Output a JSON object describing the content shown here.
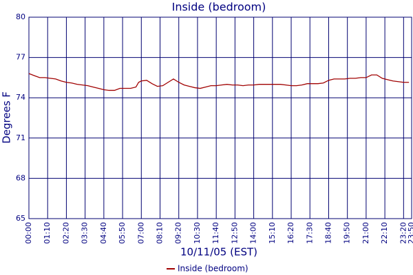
{
  "chart_data": {
    "type": "line",
    "title": "Inside (bedroom)",
    "x_label": "10/11/05 (EST)",
    "y_label": "Degrees F",
    "x": [
      0,
      20,
      40,
      60,
      80,
      100,
      120,
      140,
      160,
      180,
      200,
      220,
      240,
      260,
      280,
      300,
      320,
      340,
      360,
      380,
      400,
      410,
      420,
      440,
      460,
      480,
      500,
      520,
      540,
      560,
      580,
      600,
      620,
      640,
      660,
      680,
      700,
      720,
      740,
      760,
      780,
      800,
      820,
      840,
      860,
      880,
      900,
      920,
      940,
      960,
      980,
      1000,
      1020,
      1040,
      1060,
      1080,
      1100,
      1120,
      1140,
      1160,
      1180,
      1200,
      1220,
      1240,
      1260,
      1280,
      1300,
      1320,
      1340,
      1360,
      1380,
      1400,
      1420
    ],
    "series": [
      {
        "name": "Inside (bedroom)",
        "color": "#a00000",
        "values": [
          75.8,
          75.65,
          75.5,
          75.5,
          75.45,
          75.4,
          75.25,
          75.15,
          75.1,
          75.0,
          74.95,
          74.9,
          74.8,
          74.7,
          74.6,
          74.55,
          74.55,
          74.7,
          74.7,
          74.7,
          74.8,
          75.15,
          75.25,
          75.3,
          75.05,
          74.85,
          74.9,
          75.15,
          75.4,
          75.15,
          74.95,
          74.85,
          74.75,
          74.7,
          74.8,
          74.9,
          74.9,
          74.95,
          75.0,
          74.95,
          74.95,
          74.9,
          74.95,
          74.95,
          75.0,
          75.0,
          75.0,
          75.0,
          75.0,
          74.95,
          74.9,
          74.9,
          74.95,
          75.05,
          75.05,
          75.05,
          75.1,
          75.3,
          75.4,
          75.4,
          75.4,
          75.45,
          75.45,
          75.5,
          75.5,
          75.7,
          75.7,
          75.45,
          75.35,
          75.25,
          75.2,
          75.15,
          75.15
        ]
      }
    ],
    "xlim": [
      0,
      1430
    ],
    "ylim": [
      65,
      80
    ],
    "xticks": [
      {
        "value": 0,
        "label": "00:00"
      },
      {
        "value": 70,
        "label": "01:10"
      },
      {
        "value": 140,
        "label": "02:20"
      },
      {
        "value": 210,
        "label": "03:30"
      },
      {
        "value": 280,
        "label": "04:40"
      },
      {
        "value": 350,
        "label": "05:50"
      },
      {
        "value": 420,
        "label": "07:00"
      },
      {
        "value": 490,
        "label": "08:10"
      },
      {
        "value": 560,
        "label": "09:20"
      },
      {
        "value": 630,
        "label": "10:30"
      },
      {
        "value": 700,
        "label": "11:40"
      },
      {
        "value": 770,
        "label": "12:50"
      },
      {
        "value": 840,
        "label": "14:00"
      },
      {
        "value": 910,
        "label": "15:10"
      },
      {
        "value": 980,
        "label": "16:20"
      },
      {
        "value": 1050,
        "label": "17:30"
      },
      {
        "value": 1120,
        "label": "18:40"
      },
      {
        "value": 1190,
        "label": "19:50"
      },
      {
        "value": 1260,
        "label": "21:00"
      },
      {
        "value": 1330,
        "label": "22:10"
      },
      {
        "value": 1400,
        "label": "23:20"
      },
      {
        "value": 1430,
        "label": "23:50"
      }
    ],
    "yticks": [
      65,
      68,
      71,
      74,
      77,
      80
    ],
    "grid": true,
    "grid_color": "#000070",
    "legend": "bottom"
  }
}
